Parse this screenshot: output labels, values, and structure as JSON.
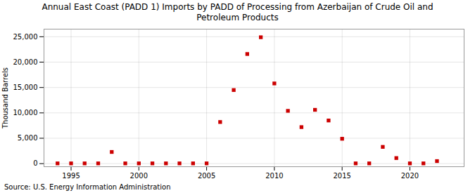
{
  "chart_data": {
    "type": "scatter",
    "title": "Annual East Coast (PADD 1) Imports by PADD of Processing from Azerbaijan of Crude Oil and\nPetroleum Products",
    "ylabel": "Thousand Barrels",
    "source": "Source: U.S. Energy Information Administration",
    "color": "#cc0000",
    "marker": "square",
    "grid": true,
    "x": [
      1994,
      1995,
      1996,
      1997,
      1998,
      1999,
      2000,
      2001,
      2002,
      2003,
      2004,
      2005,
      2006,
      2007,
      2008,
      2009,
      2010,
      2011,
      2012,
      2013,
      2014,
      2015,
      2016,
      2017,
      2018,
      2019,
      2020,
      2021,
      2022
    ],
    "values": [
      50,
      50,
      50,
      50,
      2300,
      50,
      50,
      50,
      50,
      50,
      50,
      50,
      8200,
      14500,
      21600,
      24900,
      15800,
      10400,
      7200,
      10600,
      8500,
      4900,
      50,
      50,
      3300,
      1100,
      50,
      50,
      500
    ],
    "xlim": [
      1993,
      2024
    ],
    "ylim": [
      -600,
      26500
    ],
    "xticks": [
      1995,
      2000,
      2005,
      2010,
      2015,
      2020
    ],
    "yticks": [
      0,
      {
        "value": 5000,
        "label": "5,000"
      },
      {
        "value": 10000,
        "label": "10,000"
      },
      {
        "value": 15000,
        "label": "15,000"
      },
      {
        "value": 20000,
        "label": "20,000"
      },
      {
        "value": 25000,
        "label": "25,000"
      }
    ]
  }
}
